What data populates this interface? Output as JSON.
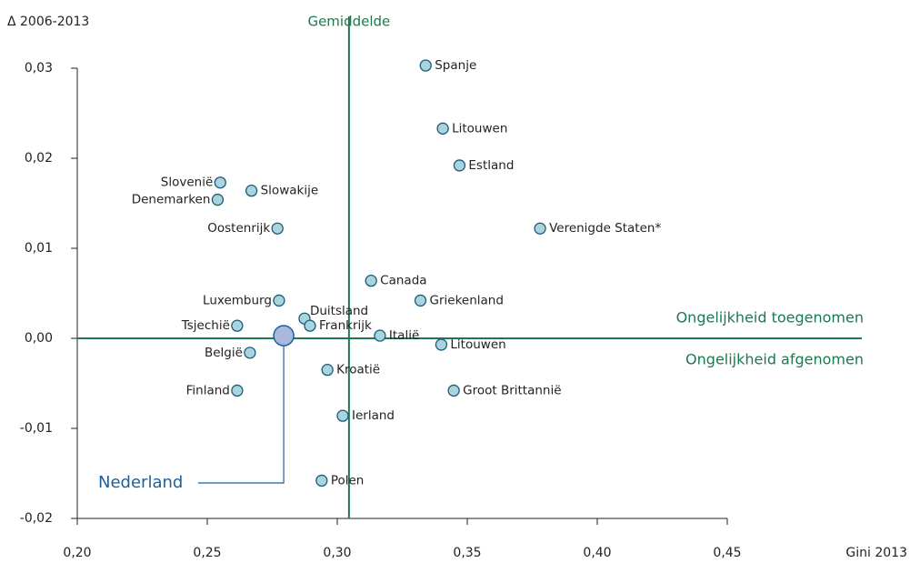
{
  "chart_data": {
    "type": "scatter",
    "y_label": "Δ 2006-2013",
    "x_label": "Gini 2013",
    "mean_label": "Gemiddelde",
    "mean_x": 0.3045,
    "above_label": "Ongelijkheid toegenomen",
    "below_label": "Ongelijkheid afgenomen",
    "callout": "Nederland",
    "xlim": [
      0.2,
      0.45
    ],
    "xticks": [
      {
        "value": 0.2,
        "label": "0,20"
      },
      {
        "value": 0.25,
        "label": "0,25"
      },
      {
        "value": 0.3,
        "label": "0,30"
      },
      {
        "value": 0.35,
        "label": "0,35"
      },
      {
        "value": 0.4,
        "label": "0,40"
      },
      {
        "value": 0.45,
        "label": "0,45"
      }
    ],
    "ylim": [
      -0.02,
      0.03
    ],
    "yticks": [
      {
        "value": -0.02,
        "label": "-0,02"
      },
      {
        "value": -0.01,
        "label": "-0,01"
      },
      {
        "value": 0,
        "label": "0,00"
      },
      {
        "value": 0.01,
        "label": "0,01"
      },
      {
        "value": 0.02,
        "label": "0,02"
      },
      {
        "value": 0.03,
        "label": "0,03"
      }
    ],
    "color": "#a9d4dc",
    "edge_color": "#1a5a78",
    "line_color": "#1a7a4f",
    "highlight_color": "#a9b9dd",
    "callout_color": "#1f5f99",
    "points": [
      {
        "name": "Spanje",
        "x": 0.334,
        "y": 0.0303
      },
      {
        "name": "Litouwen",
        "x": 0.3406,
        "y": 0.0233
      },
      {
        "name": "Estland",
        "x": 0.347,
        "y": 0.0192
      },
      {
        "name": "Verenigde Staten*",
        "x": 0.378,
        "y": 0.0122
      },
      {
        "name": "Slovenië",
        "x": 0.255,
        "y": 0.0173
      },
      {
        "name": "Slowakije",
        "x": 0.267,
        "y": 0.0164
      },
      {
        "name": "Denemarken",
        "x": 0.254,
        "y": 0.0154
      },
      {
        "name": "Oostenrijk",
        "x": 0.277,
        "y": 0.0122
      },
      {
        "name": "Canada",
        "x": 0.313,
        "y": 0.0064
      },
      {
        "name": "Griekenland",
        "x": 0.332,
        "y": 0.0042
      },
      {
        "name": "Luxemburg",
        "x": 0.2776,
        "y": 0.0042
      },
      {
        "name": "Duitsland",
        "x": 0.2874,
        "y": 0.0022
      },
      {
        "name": "Frankrijk",
        "x": 0.2895,
        "y": 0.0014
      },
      {
        "name": "Tsjechië",
        "x": 0.2615,
        "y": 0.0014
      },
      {
        "name": "Italië",
        "x": 0.3164,
        "y": 0.0003
      },
      {
        "x": 0.2794,
        "y": 0.0003
      },
      {
        "name": "Litouwen",
        "x": 0.34,
        "y": -0.0007
      },
      {
        "name": "België",
        "x": 0.2664,
        "y": -0.0016
      },
      {
        "name": "Kroatië",
        "x": 0.2962,
        "y": -0.0035
      },
      {
        "name": "Finland",
        "x": 0.2615,
        "y": -0.0058
      },
      {
        "name": "Groot Brittannië",
        "x": 0.3448,
        "y": -0.0058
      },
      {
        "name": "Ierland",
        "x": 0.3021,
        "y": -0.0086
      },
      {
        "name": "Polen",
        "x": 0.294,
        "y": -0.0158
      }
    ]
  }
}
